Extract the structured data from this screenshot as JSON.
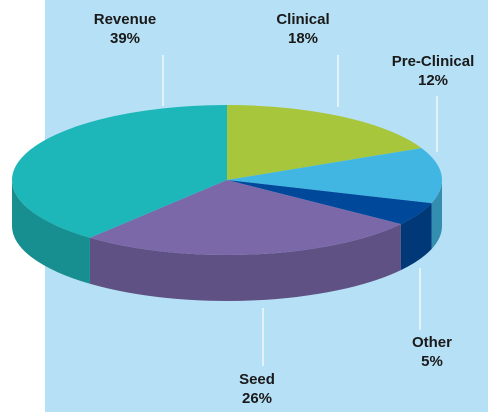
{
  "chart_data": {
    "type": "pie",
    "categories": [
      "Clinical",
      "Pre-Clinical",
      "Other",
      "Seed",
      "Revenue"
    ],
    "values": [
      18,
      12,
      5,
      26,
      39
    ],
    "value_labels": [
      "18%",
      "12%",
      "5%",
      "26%",
      "39%"
    ],
    "colors": [
      "#a7c63b",
      "#41b6e2",
      "#00489a",
      "#7b68a9",
      "#1db7b9"
    ]
  }
}
